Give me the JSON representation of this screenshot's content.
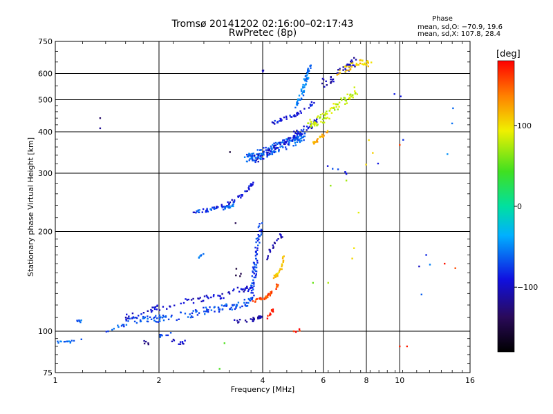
{
  "chart_data": {
    "type": "scatter",
    "title": "Tromsø 20141202 02:16:00–02:17:43",
    "subtitle": "RwPretec (8p)",
    "xlabel": "Frequency [MHz]",
    "ylabel": "Stationary phase Virtual Height [km]",
    "x_scale": "log",
    "y_scale": "log",
    "xlim": [
      1,
      16
    ],
    "ylim": [
      75,
      750
    ],
    "x_ticks": [
      1,
      2,
      4,
      6,
      8,
      10,
      16
    ],
    "x_tick_labels": [
      "1",
      "2",
      "4",
      "6",
      "8",
      "10",
      "16"
    ],
    "y_ticks": [
      75,
      100,
      200,
      300,
      400,
      500,
      600,
      750
    ],
    "y_tick_labels": [
      "75",
      "100",
      "200",
      "300",
      "400",
      "500",
      "600",
      "750"
    ],
    "grid": true,
    "phase_stats": {
      "title": "Phase",
      "o_mode": "mean, sd,O: −70.9, 19.6",
      "x_mode": "mean, sd,X: 107.8, 28.4"
    },
    "colorbar": {
      "label": "[deg]",
      "min": -180,
      "max": 180,
      "ticks": [
        100,
        0,
        -100
      ],
      "tick_labels": [
        "100",
        "0",
        "−100"
      ]
    },
    "traces": [
      {
        "x": [
          1.0,
          1.05,
          1.1,
          1.2
        ],
        "y": [
          93,
          92,
          93,
          94
        ],
        "phase": -60,
        "n": 14
      },
      {
        "x": [
          1.15,
          1.2
        ],
        "y": [
          107,
          108
        ],
        "phase": -60,
        "n": 6
      },
      {
        "x": [
          1.4,
          1.7,
          2.0,
          2.3,
          2.7,
          3.1,
          3.5,
          3.75
        ],
        "y": [
          100,
          108,
          109,
          111,
          115,
          118,
          120,
          126
        ],
        "phase": -70,
        "n": 140,
        "spread": 0.025
      },
      {
        "x": [
          1.6,
          1.9,
          2.2,
          2.6,
          3.0,
          3.4,
          3.7
        ],
        "y": [
          110,
          116,
          120,
          125,
          127,
          133,
          135
        ],
        "phase": -95,
        "n": 80,
        "spread": 0.02
      },
      {
        "x": [
          3.3,
          3.7,
          3.9,
          4.0
        ],
        "y": [
          107,
          108,
          110,
          112
        ],
        "phase": -110,
        "n": 25
      },
      {
        "x": [
          2.45,
          2.8,
          3.1,
          3.4,
          3.65,
          3.75
        ],
        "y": [
          230,
          232,
          240,
          252,
          270,
          280
        ],
        "phase": -90,
        "n": 55
      },
      {
        "x": [
          2.5,
          2.8,
          3.1,
          3.3
        ],
        "y": [
          230,
          232,
          235,
          240
        ],
        "phase": -60,
        "n": 30
      },
      {
        "x": [
          3.7,
          3.75,
          3.8,
          3.85,
          3.9,
          3.95
        ],
        "y": [
          130,
          140,
          155,
          170,
          190,
          210
        ],
        "phase": -75,
        "n": 70,
        "spread": 0.03
      },
      {
        "x": [
          3.75,
          3.9,
          4.0,
          4.15,
          4.3,
          4.45
        ],
        "y": [
          123,
          125,
          125,
          128,
          132,
          140
        ],
        "phase": 155,
        "n": 45,
        "spread": 0.01
      },
      {
        "x": [
          4.3,
          4.45,
          4.55,
          4.6
        ],
        "y": [
          145,
          150,
          158,
          168
        ],
        "phase": 110,
        "n": 25
      },
      {
        "x": [
          4.1,
          4.2,
          4.3
        ],
        "y": [
          110,
          112,
          118
        ],
        "phase": 175,
        "n": 12
      },
      {
        "x": [
          4.05,
          4.2,
          4.35,
          4.5,
          4.6
        ],
        "y": [
          160,
          175,
          185,
          195,
          190
        ],
        "phase": -110,
        "n": 20
      },
      {
        "x": [
          3.6,
          3.8,
          4.0,
          4.3,
          4.6,
          5.0,
          5.3
        ],
        "y": [
          330,
          335,
          345,
          355,
          365,
          380,
          395
        ],
        "phase": -65,
        "n": 170,
        "spread": 0.035
      },
      {
        "x": [
          3.8,
          4.2,
          4.6,
          5.0,
          5.4,
          5.8
        ],
        "y": [
          330,
          350,
          370,
          395,
          410,
          430
        ],
        "phase": -95,
        "n": 70,
        "spread": 0.025
      },
      {
        "x": [
          4.2,
          4.6,
          5.0,
          5.4,
          5.7
        ],
        "y": [
          420,
          440,
          450,
          470,
          500
        ],
        "phase": -90,
        "n": 40
      },
      {
        "x": [
          5.0,
          5.2,
          5.3,
          5.4,
          5.5
        ],
        "y": [
          480,
          520,
          560,
          600,
          640
        ],
        "phase": -55,
        "n": 60,
        "spread": 0.02
      },
      {
        "x": [
          5.4,
          5.7,
          6.0,
          6.3,
          6.6,
          7.0,
          7.5
        ],
        "y": [
          420,
          430,
          440,
          460,
          480,
          500,
          530
        ],
        "phase": 80,
        "n": 90,
        "spread": 0.03
      },
      {
        "x": [
          5.6,
          5.8,
          6.0,
          6.2
        ],
        "y": [
          370,
          380,
          390,
          400
        ],
        "phase": 120,
        "n": 25
      },
      {
        "x": [
          6.0,
          6.4,
          6.8,
          7.2,
          7.5
        ],
        "y": [
          560,
          580,
          610,
          640,
          660
        ],
        "phase": -105,
        "n": 45,
        "spread": 0.03
      },
      {
        "x": [
          6.6,
          7.0,
          7.4,
          7.8,
          8.2
        ],
        "y": [
          600,
          620,
          640,
          650,
          640
        ],
        "phase": 110,
        "n": 40,
        "spread": 0.02
      },
      {
        "x": [
          6.0,
          6.5,
          7.0
        ],
        "y": [
          320,
          310,
          300
        ],
        "phase": -80,
        "n": 6
      },
      {
        "x": [
          1.35,
          1.35
        ],
        "y": [
          440,
          410
        ],
        "phase": -120,
        "n": 2
      },
      {
        "x": [
          2.8,
          3.3,
          3.35,
          3.45,
          3.5
        ],
        "y": [
          360,
          345,
          148,
          148,
          150
        ],
        "phase": -145,
        "n": 6
      },
      {
        "x": [
          4.0,
          4.05
        ],
        "y": [
          615,
          620
        ],
        "phase": -100,
        "n": 3
      },
      {
        "x": [
          2.6,
          2.7
        ],
        "y": [
          168,
          170
        ],
        "phase": -55,
        "n": 6
      },
      {
        "x": [
          2.1,
          2.3,
          2.4
        ],
        "y": [
          95,
          92,
          93
        ],
        "phase": -100,
        "n": 10
      },
      {
        "x": [
          2.0,
          2.2
        ],
        "y": [
          97,
          98
        ],
        "phase": -70,
        "n": 8
      },
      {
        "x": [
          1.8,
          1.9
        ],
        "y": [
          93,
          91
        ],
        "phase": -120,
        "n": 5
      },
      {
        "x": [
          4.8,
          5.0,
          5.2
        ],
        "y": [
          101,
          100,
          101
        ],
        "phase": 170,
        "n": 5
      },
      {
        "x": [
          7.1,
          8.1,
          8.4,
          9.0
        ],
        "y": [
          130,
          375,
          340,
          500
        ],
        "phase": 100,
        "n": 6
      },
      {
        "x": [
          8.2,
          10.0,
          10.9,
          12.5
        ],
        "y": [
          250,
          585,
          140,
          190
        ],
        "phase": -90,
        "n": 6
      },
      {
        "x": [
          14.2,
          14.3,
          12.5,
          11.5
        ],
        "y": [
          480,
          465,
          175,
          128
        ],
        "phase": -60,
        "n": 5
      },
      {
        "x": [
          6.2,
          6.3,
          7.0,
          5.6,
          3.0,
          3.1
        ],
        "y": [
          140,
          275,
          285,
          140,
          77,
          92
        ],
        "phase": 60,
        "n": 6
      },
      {
        "x": [
          10.0,
          13.5,
          14.5,
          10.0,
          10.5
        ],
        "y": [
          365,
          160,
          155,
          90,
          90
        ],
        "phase": 170,
        "n": 5
      }
    ]
  }
}
